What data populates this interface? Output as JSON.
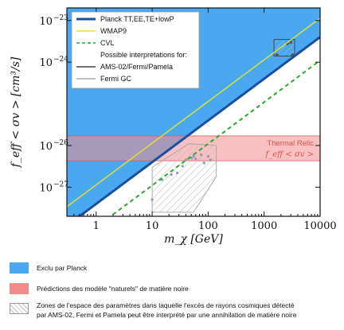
{
  "chart_data": {
    "type": "line",
    "xlabel": "m_χ [GeV]",
    "ylabel": "f_eff < σv > [cm³/s]",
    "xscale": "log",
    "yscale": "log",
    "xlim": [
      0.3,
      10000
    ],
    "ylim": [
      2e-28,
      2e-23
    ],
    "x_ticks": [
      1,
      10,
      100,
      1000,
      10000
    ],
    "x_tick_labels": [
      "1",
      "10",
      "100",
      "1000",
      "10000"
    ],
    "y_ticks": [
      1e-27,
      1e-26,
      1e-24,
      1e-23
    ],
    "y_tick_labels": [
      "10",
      "10",
      "10",
      "10"
    ],
    "y_tick_exponents": [
      "−27",
      "−26",
      "−24",
      "−23"
    ],
    "series": [
      {
        "name": "Planck TT,EE,TE+lowP",
        "style": "solid",
        "color": "#1a4f9c",
        "x": [
          0.3,
          10000
        ],
        "y": [
          1.19e-28,
          4e-24
        ]
      },
      {
        "name": "WMAP9",
        "style": "solid",
        "color": "#e8e02a",
        "x": [
          0.3,
          10000
        ],
        "y": [
          3.4e-28,
          1.14e-23
        ]
      },
      {
        "name": "CVL",
        "style": "dashed",
        "color": "#2fa82f",
        "x": [
          0.3,
          10000
        ],
        "y": [
          3.3e-29,
          1.1e-24
        ]
      }
    ],
    "legend": {
      "placement": "top-left",
      "entries": [
        {
          "label": "Planck TT,EE,TE+lowP",
          "kind": "line",
          "color": "#1a4f9c",
          "style": "solid"
        },
        {
          "label": "WMAP9",
          "kind": "line",
          "color": "#e8e02a",
          "style": "solid"
        },
        {
          "label": "CVL",
          "kind": "line",
          "color": "#2fa82f",
          "style": "dashed"
        },
        {
          "label": "Possible interpretations for:",
          "kind": "text"
        },
        {
          "label": "AMS-02/Fermi/Pamela",
          "kind": "line",
          "color": "#444444",
          "style": "solid"
        },
        {
          "label": "Fermi GC",
          "kind": "line",
          "color": "#aaaaaa",
          "style": "solid"
        }
      ]
    },
    "relic_band": {
      "y_low": 4.3e-27,
      "y_high": 1.7e-26,
      "color": "#f28c8c",
      "label": "Thermal Relic",
      "sublabel": "f_eff < σv >"
    },
    "ams_region": {
      "color": "#444444",
      "polygon": [
        [
          1500,
          3.5e-24
        ],
        [
          3500,
          3.5e-24
        ],
        [
          3500,
          1.4e-24
        ],
        [
          1500,
          1.4e-24
        ]
      ],
      "points": [
        [
          1700,
          1.5e-24
        ],
        [
          2600,
          2.8e-24
        ],
        [
          3000,
          3e-24
        ],
        [
          3200,
          1.5e-24
        ]
      ]
    },
    "fermi_gc_region": {
      "color": "#aaaaaa",
      "polygon": [
        [
          10,
          3e-27
        ],
        [
          45,
          1.1e-26
        ],
        [
          140,
          1e-26
        ],
        [
          140,
          1.8e-27
        ],
        [
          55,
          2.5e-28
        ],
        [
          10,
          2.5e-28
        ]
      ],
      "points": [
        [
          10,
          5e-28
        ],
        [
          15,
          1.5e-27
        ],
        [
          22,
          2e-27
        ],
        [
          28,
          2.2e-27
        ],
        [
          35,
          3.2e-27
        ],
        [
          40,
          4.5e-27
        ],
        [
          50,
          5e-27
        ],
        [
          55,
          5.5e-27
        ],
        [
          60,
          4.8e-27
        ],
        [
          75,
          6e-27
        ],
        [
          85,
          3.8e-27
        ],
        [
          100,
          5.5e-27
        ],
        [
          110,
          4.5e-27
        ]
      ]
    }
  },
  "legend_key": {
    "planck_label": "Exclu par Planck",
    "relic_label": "Prédictions des modèle \"naturels\" de matière noire",
    "zones_label_line1": "Zones de l'espace des paramètres dans laquelle l'excès de rayons cosmiques détecté",
    "zones_label_line2": "par AMS-02, Fermi et Pamela peut être interprété par une annihilation de matière noire",
    "planck_color": "#4aa8f0",
    "relic_color": "#f28c8c"
  }
}
